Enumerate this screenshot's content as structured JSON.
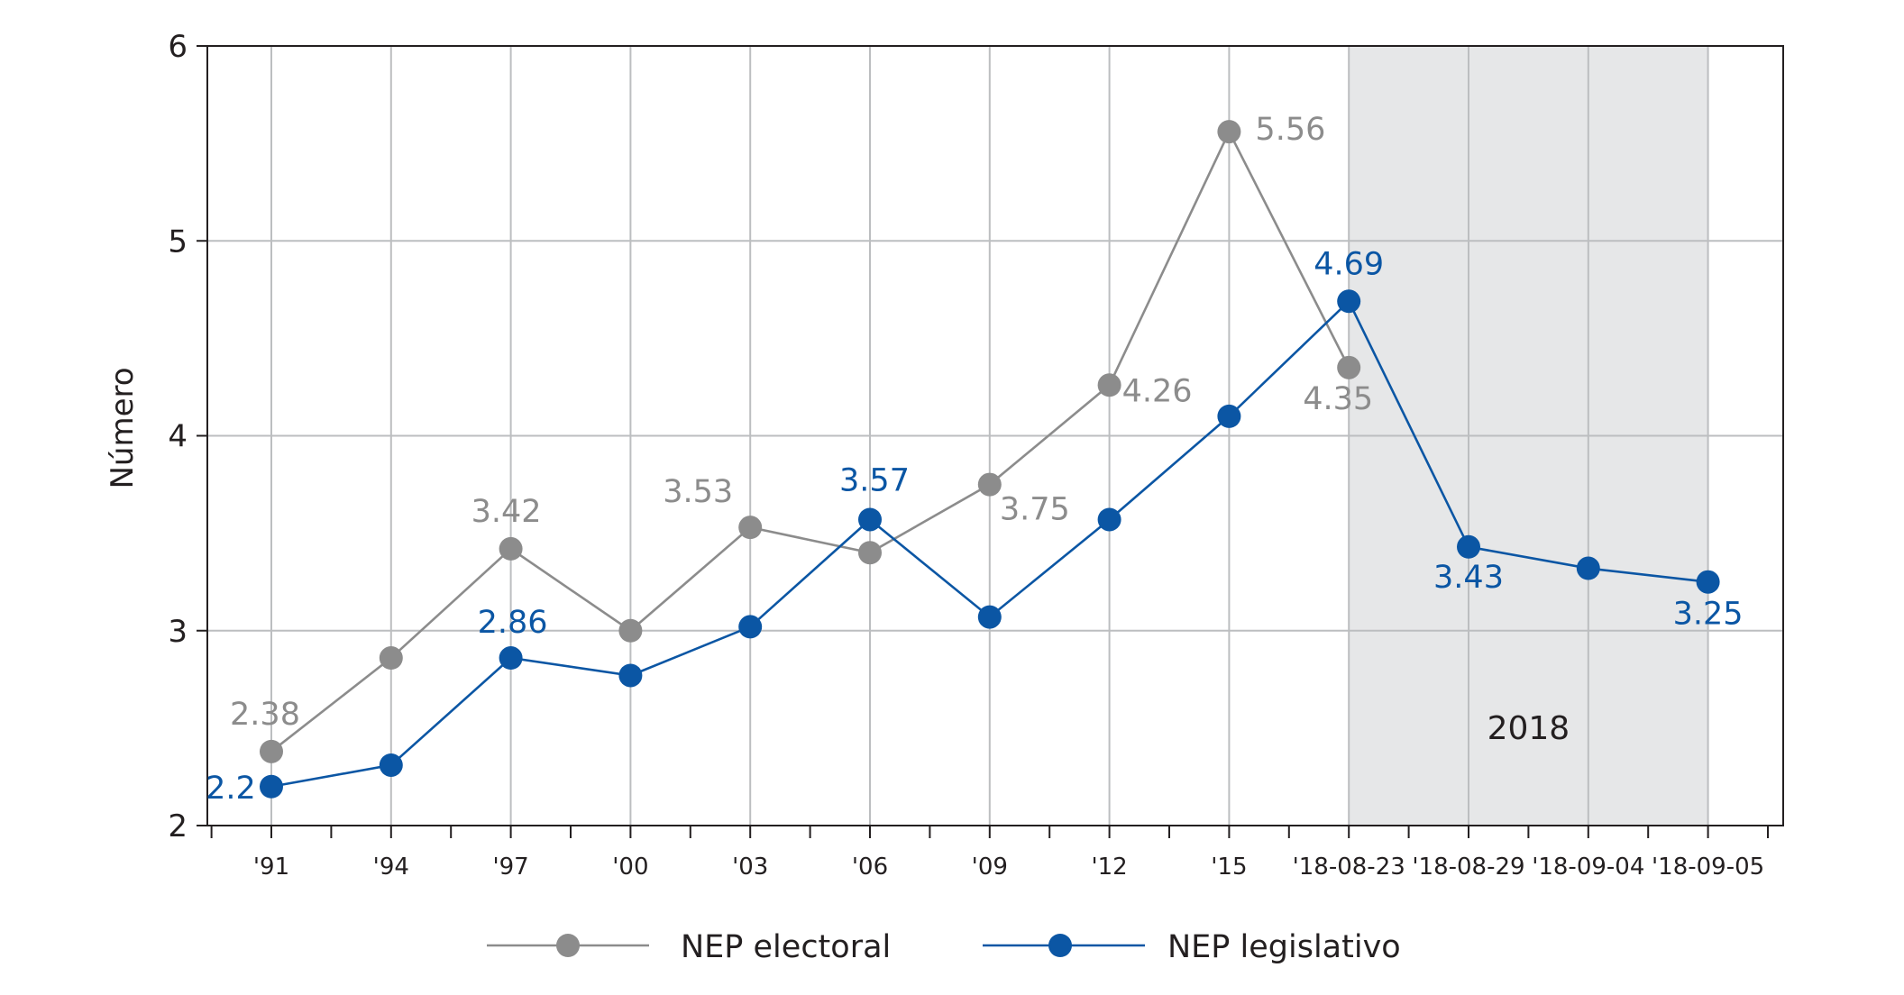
{
  "chart_data": {
    "type": "line",
    "title": "",
    "xlabel": "",
    "ylabel": "Número",
    "ylim": [
      2,
      6
    ],
    "yticks": [
      "2",
      "3",
      "4",
      "5",
      "6"
    ],
    "grid": true,
    "categories": [
      "'91",
      "'94",
      "'97",
      "'00",
      "'03",
      "'06",
      "'09",
      "'12",
      "'15",
      "'18-08-23",
      "'18-08-29",
      "'18-09-04",
      "'18-09-05"
    ],
    "shaded_region": {
      "from_category": "'18-08-23",
      "to_category": "'18-09-05",
      "label": "2018",
      "color": "#e6e7e8"
    },
    "series": [
      {
        "name": "NEP electoral",
        "color": "#8c8c8c",
        "values": [
          2.38,
          2.86,
          3.42,
          3.0,
          3.53,
          3.4,
          3.75,
          4.26,
          5.56,
          4.35,
          null,
          null,
          null
        ],
        "labels": [
          "2.38",
          "",
          "3.42",
          "",
          "3.53",
          "",
          "3.75",
          "4.26",
          "5.56",
          "4.35",
          "",
          "",
          ""
        ]
      },
      {
        "name": "NEP legislativo",
        "color": "#0b56a4",
        "values": [
          2.2,
          2.31,
          2.86,
          2.77,
          3.02,
          3.57,
          3.07,
          3.57,
          4.1,
          4.69,
          3.43,
          3.32,
          3.25
        ],
        "labels": [
          "2.2",
          "",
          "2.86",
          "",
          "",
          "3.57",
          "",
          "",
          "",
          "4.69",
          "3.43",
          "",
          "3.25"
        ]
      }
    ],
    "legend": {
      "position": "bottom",
      "items": [
        "NEP electoral",
        "NEP legislativo"
      ]
    }
  }
}
